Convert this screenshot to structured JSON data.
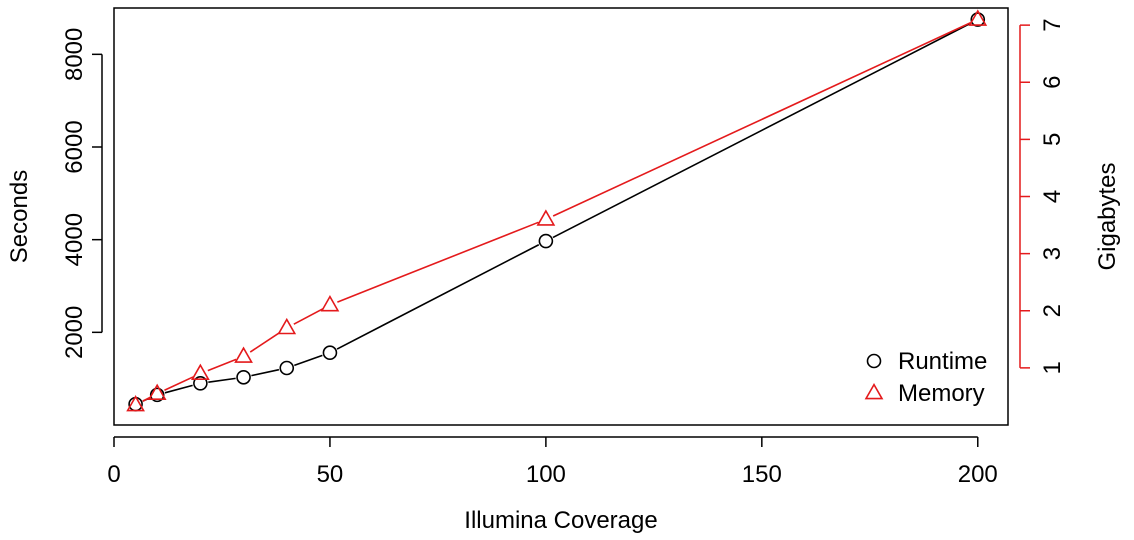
{
  "chart_data": {
    "type": "line",
    "xlabel": "Illumina Coverage",
    "ylabel_left": "Seconds",
    "ylabel_right": "Gigabytes",
    "xlim": [
      0,
      207
    ],
    "ylim_left": [
      0,
      9000
    ],
    "ylim_right": [
      0,
      7.3
    ],
    "x_ticks": [
      0,
      50,
      100,
      150,
      200
    ],
    "y_left_ticks": [
      2000,
      4000,
      6000,
      8000
    ],
    "y_right_ticks": [
      1,
      2,
      3,
      4,
      5,
      6,
      7
    ],
    "grid": false,
    "legend_position": "bottom-right",
    "colors": {
      "runtime": "#000000",
      "memory": "#e41a1c"
    },
    "series": [
      {
        "name": "Runtime",
        "axis": "left",
        "marker": "circle",
        "color": "#000000",
        "x": [
          5,
          10,
          20,
          30,
          40,
          50,
          100,
          200
        ],
        "y": [
          450,
          650,
          900,
          1030,
          1230,
          1560,
          3970,
          8750
        ]
      },
      {
        "name": "Memory",
        "axis": "right",
        "marker": "triangle",
        "color": "#e41a1c",
        "x": [
          5,
          10,
          20,
          30,
          40,
          50,
          100,
          200
        ],
        "y": [
          0.35,
          0.55,
          0.9,
          1.2,
          1.7,
          2.1,
          3.6,
          7.1
        ]
      }
    ]
  }
}
